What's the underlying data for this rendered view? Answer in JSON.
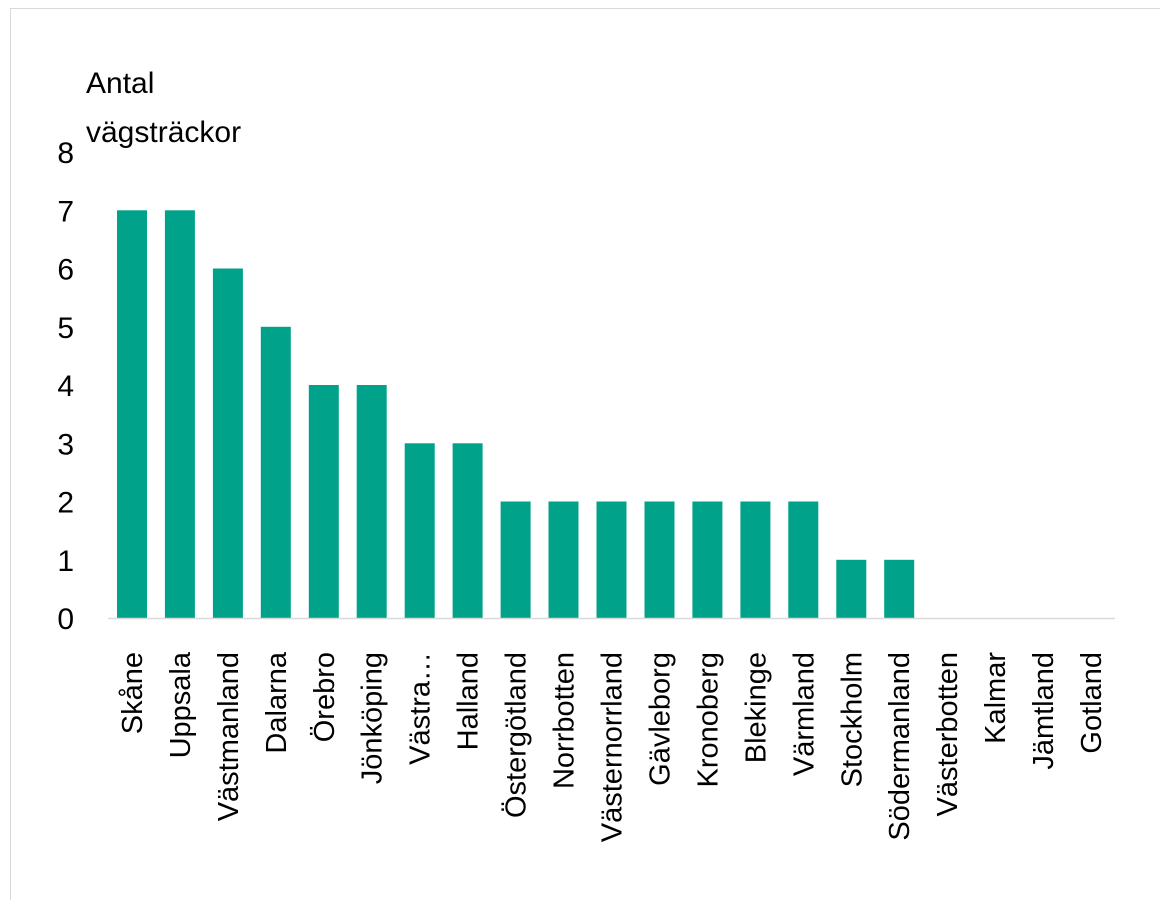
{
  "chart_data": {
    "type": "bar",
    "title": "",
    "ylabel_lines": [
      "Antal",
      "vägsträckor"
    ],
    "xlabel": "",
    "ylim": [
      0,
      8
    ],
    "yticks": [
      "0",
      "1",
      "2",
      "3",
      "4",
      "5",
      "6",
      "7",
      "8"
    ],
    "grid": false,
    "legend": "none",
    "bar_color": "#00a28a",
    "axis_color": "#d9d9d9",
    "categories": [
      "Skåne",
      "Uppsala",
      "Västmanland",
      "Dalarna",
      "Örebro",
      "Jönköping",
      "Västra…",
      "Halland",
      "Östergötland",
      "Norrbotten",
      "Västernorrland",
      "Gävleborg",
      "Kronoberg",
      "Blekinge",
      "Värmland",
      "Stockholm",
      "Södermanland",
      "Västerbotten",
      "Kalmar",
      "Jämtland",
      "Gotland"
    ],
    "values": [
      7,
      7,
      6,
      5,
      4,
      4,
      3,
      3,
      2,
      2,
      2,
      2,
      2,
      2,
      2,
      1,
      1,
      0,
      0,
      0,
      0
    ]
  }
}
